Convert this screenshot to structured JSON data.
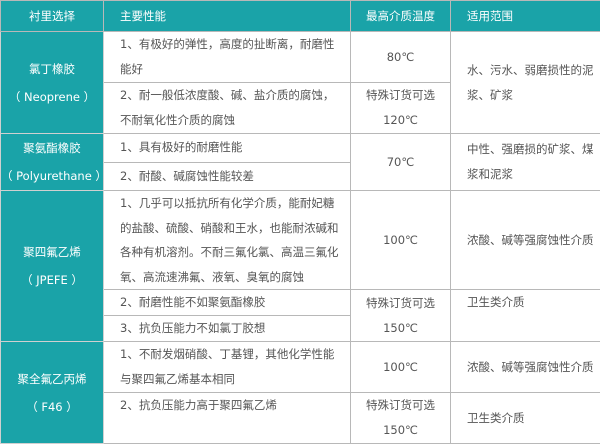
{
  "header": {
    "col1": "衬里选择",
    "col2": "主要性能",
    "col3": "最高介质温度",
    "col4": "适用范围"
  },
  "rows": [
    {
      "name": "氯丁橡胶",
      "code": "（ Neoprene ）",
      "props": [
        "1、有极好的弹性，高度的扯断离，耐磨性能好",
        "2、耐一般低浓度酸、碱、盐介质的腐蚀，不耐氧化性介质的腐蚀"
      ],
      "temp1": "80℃",
      "temp2a": "特殊订货可选",
      "temp2b": "120℃",
      "use": "水、污水、弱磨损性的泥浆、矿浆"
    },
    {
      "name": "聚氨酯橡胶",
      "code": "（ Polyurethane ）",
      "props": [
        "1、具有极好的耐磨性能",
        "2、耐酸、碱腐蚀性能较差"
      ],
      "temp1": "70℃",
      "use": "中性、强磨损的矿浆、煤浆和泥浆"
    },
    {
      "name": "聚四氟乙烯",
      "code": "（ JPEFE ）",
      "props": [
        "1、几乎可以抵抗所有化学介质，能耐妃糖的盐酸、硫酸、硝酸和王水，也能耐浓碱和各种有机溶剂。不耐三氟化氯、高温三氟化氧、高流速沸氟、液氧、臭氧的腐蚀",
        "2、耐磨性能不如聚氨酯橡胶",
        "3、抗负压能力不如氯丁胶想"
      ],
      "temp1": "100℃",
      "temp2a": "特殊订货可选",
      "temp2b": "150℃",
      "use": "浓酸、碱等强腐蚀性介质",
      "use2": "卫生类介质"
    },
    {
      "name": "聚全氟乙丙烯",
      "code": "（ F46 ）",
      "props": [
        "1、不耐发烟硝酸、丁基锂，其他化学性能与聚四氟乙烯基本相同",
        "2、抗负压能力高于聚四氟乙烯"
      ],
      "temp1": "100℃",
      "temp2a": "特殊订货可选",
      "temp2b": "150℃",
      "use": "浓酸、碱等强腐蚀性介质",
      "use2": "卫生类介质"
    }
  ],
  "colors": {
    "header_bg": "#1aa3a8",
    "grid": "#b8b8b8"
  }
}
